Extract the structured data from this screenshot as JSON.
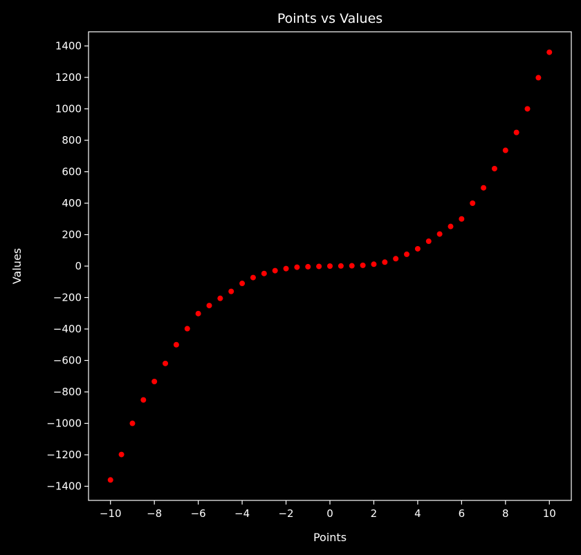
{
  "chart_data": {
    "type": "scatter",
    "title": "Points vs Values",
    "xlabel": "Points",
    "ylabel": "Values",
    "xlim": [
      -11,
      11
    ],
    "ylim": [
      -1490,
      1490
    ],
    "xticks": [
      -10,
      -8,
      -6,
      -4,
      -2,
      0,
      2,
      4,
      6,
      8,
      10
    ],
    "xtick_labels": [
      "−10",
      "−8",
      "−6",
      "−4",
      "−2",
      "0",
      "2",
      "4",
      "6",
      "8",
      "10"
    ],
    "yticks": [
      -1400,
      -1200,
      -1000,
      -800,
      -600,
      -400,
      -200,
      0,
      200,
      400,
      600,
      800,
      1000,
      1200,
      1400
    ],
    "ytick_labels": [
      "−1400",
      "−1200",
      "−1000",
      "−800",
      "−600",
      "−400",
      "−200",
      "0",
      "200",
      "400",
      "600",
      "800",
      "1000",
      "1200",
      "1400"
    ],
    "grid": false,
    "colors": {
      "background": "#000000",
      "foreground": "#ffffff",
      "marker": "#ff0000"
    },
    "x": [
      -10,
      -9.5,
      -9,
      -8.5,
      -8,
      -7.5,
      -7,
      -6.5,
      -6,
      -5.5,
      -5,
      -4.5,
      -4,
      -3.5,
      -3,
      -2.5,
      -2,
      -1.5,
      -1,
      -0.5,
      0,
      0.5,
      1,
      1.5,
      2,
      2.5,
      3,
      3.5,
      4,
      4.5,
      5,
      5.5,
      6,
      6.5,
      7,
      7.5,
      8,
      8.5,
      9,
      9.5,
      10
    ],
    "y": [
      -1360,
      -1198,
      -1000,
      -851,
      -734,
      -619,
      -500,
      -398,
      -302,
      -251,
      -205,
      -161,
      -110,
      -73,
      -47,
      -29,
      -16,
      -7,
      -4,
      -2,
      0,
      1,
      2,
      5,
      12,
      25,
      47,
      75,
      110,
      158,
      204,
      252,
      300,
      400,
      498,
      620,
      736,
      850,
      1000,
      1198,
      1360
    ]
  }
}
